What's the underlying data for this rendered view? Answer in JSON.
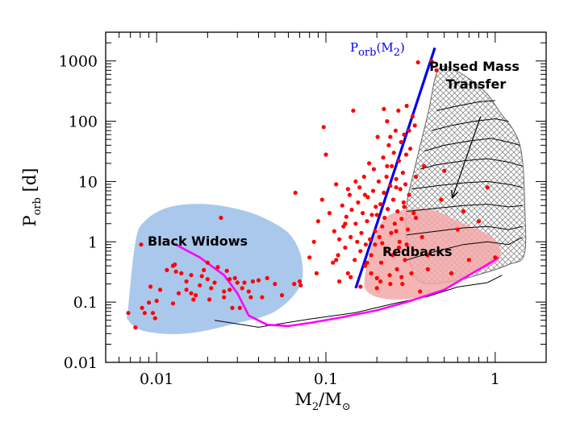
{
  "chart_data": {
    "type": "scatter",
    "x_scale": "log",
    "y_scale": "log",
    "xlim": [
      0.005,
      2.0
    ],
    "ylim": [
      0.01,
      3000
    ],
    "x_ticks": [
      {
        "value": 0.01,
        "label": "0.01"
      },
      {
        "value": 0.1,
        "label": "0.1"
      },
      {
        "value": 1,
        "label": "1"
      }
    ],
    "y_ticks": [
      {
        "value": 0.01,
        "label": "0.01"
      },
      {
        "value": 0.1,
        "label": "0.1"
      },
      {
        "value": 1,
        "label": "1"
      },
      {
        "value": 10,
        "label": "10"
      },
      {
        "value": 100,
        "label": "100"
      },
      {
        "value": 1000,
        "label": "1000"
      }
    ],
    "xlabel": {
      "main": "M",
      "sub": "2",
      "rest": "/M",
      "sub2": "⊙"
    },
    "ylabel": {
      "main": "P",
      "sub": "orb",
      "rest": " [d]"
    },
    "colors": {
      "points": "#ff0000",
      "black_widow_region": "#aac8ec",
      "redback_region": "#f4a8a8",
      "porb_line": "#0000ee",
      "bw_track": "#ff00ff",
      "pmt_region_stroke": "#666666",
      "tracks": "#000000"
    },
    "annotations": {
      "black_widows": "Black Widows",
      "redbacks": "Redbacks",
      "pulsed_mass_transfer_1": "Pulsed Mass",
      "pulsed_mass_transfer_2": "Transfer",
      "porb_line_main": "P",
      "porb_line_sub": "orb",
      "porb_line_rest": "(M",
      "porb_line_sub2": "2",
      "porb_line_close": ")"
    },
    "porb_line": [
      [
        0.15,
        0.17
      ],
      [
        0.44,
        1650
      ]
    ],
    "black_widow_region": [
      [
        0.0068,
        0.08
      ],
      [
        0.0075,
        1.0
      ],
      [
        0.0085,
        2.2
      ],
      [
        0.012,
        3.8
      ],
      [
        0.02,
        4.2
      ],
      [
        0.034,
        3.2
      ],
      [
        0.05,
        2.0
      ],
      [
        0.063,
        1.2
      ],
      [
        0.072,
        0.5
      ],
      [
        0.07,
        0.18
      ],
      [
        0.05,
        0.07
      ],
      [
        0.03,
        0.045
      ],
      [
        0.015,
        0.03
      ],
      [
        0.0085,
        0.033
      ],
      [
        0.0068,
        0.05
      ]
    ],
    "redback_region": [
      [
        0.17,
        0.28
      ],
      [
        0.2,
        1.5
      ],
      [
        0.25,
        3.0
      ],
      [
        0.4,
        3.5
      ],
      [
        0.65,
        2.0
      ],
      [
        1.0,
        1.1
      ],
      [
        1.05,
        0.5
      ],
      [
        0.75,
        0.3
      ],
      [
        0.45,
        0.14
      ],
      [
        0.26,
        0.11
      ],
      [
        0.18,
        0.14
      ]
    ],
    "pmt_region": [
      [
        0.32,
        10
      ],
      [
        0.4,
        130
      ],
      [
        0.46,
        700
      ],
      [
        0.58,
        700
      ],
      [
        0.85,
        330
      ],
      [
        1.05,
        150
      ],
      [
        1.4,
        40
      ],
      [
        1.5,
        3
      ],
      [
        1.48,
        0.6
      ],
      [
        1.2,
        0.42
      ],
      [
        0.85,
        0.3
      ],
      [
        0.55,
        0.22
      ],
      [
        0.35,
        0.23
      ],
      [
        0.3,
        1.0
      ],
      [
        0.3,
        4
      ]
    ],
    "bw_track": [
      [
        0.0125,
        0.95
      ],
      [
        0.018,
        0.55
      ],
      [
        0.025,
        0.28
      ],
      [
        0.03,
        0.14
      ],
      [
        0.035,
        0.06
      ],
      [
        0.045,
        0.042
      ],
      [
        0.06,
        0.04
      ],
      [
        0.08,
        0.045
      ],
      [
        0.12,
        0.055
      ],
      [
        0.2,
        0.073
      ],
      [
        0.3,
        0.1
      ],
      [
        0.5,
        0.16
      ],
      [
        0.7,
        0.28
      ],
      [
        0.9,
        0.42
      ],
      [
        1.05,
        0.55
      ]
    ],
    "evolution_tracks": [
      [
        [
          0.022,
          0.05
        ],
        [
          0.04,
          0.04
        ],
        [
          0.08,
          0.05
        ],
        [
          0.15,
          0.07
        ],
        [
          0.25,
          0.09
        ],
        [
          0.4,
          0.13
        ],
        [
          0.6,
          0.17
        ],
        [
          0.9,
          0.22
        ],
        [
          1.1,
          0.28
        ]
      ],
      [
        [
          0.3,
          0.5
        ],
        [
          0.45,
          0.7
        ],
        [
          0.65,
          0.9
        ],
        [
          0.9,
          1.0
        ],
        [
          1.2,
          0.9
        ],
        [
          1.45,
          1.2
        ]
      ],
      [
        [
          0.3,
          1.3
        ],
        [
          0.45,
          1.5
        ],
        [
          0.65,
          1.7
        ],
        [
          0.9,
          1.8
        ],
        [
          1.2,
          1.6
        ],
        [
          1.45,
          1.8
        ]
      ],
      [
        [
          0.3,
          3.2
        ],
        [
          0.45,
          3.6
        ],
        [
          0.65,
          4.0
        ],
        [
          0.9,
          4.2
        ],
        [
          1.2,
          3.8
        ],
        [
          1.45,
          4.0
        ]
      ],
      [
        [
          0.32,
          7.5
        ],
        [
          0.45,
          8.5
        ],
        [
          0.65,
          9.5
        ],
        [
          0.9,
          10.0
        ],
        [
          1.2,
          9.0
        ],
        [
          1.45,
          8.0
        ]
      ],
      [
        [
          0.36,
          16
        ],
        [
          0.45,
          19
        ],
        [
          0.65,
          22
        ],
        [
          0.9,
          24
        ],
        [
          1.2,
          21
        ],
        [
          1.45,
          18
        ]
      ],
      [
        [
          0.38,
          32
        ],
        [
          0.5,
          40
        ],
        [
          0.7,
          47
        ],
        [
          0.95,
          52
        ],
        [
          1.2,
          45
        ],
        [
          1.4,
          40
        ]
      ],
      [
        [
          0.42,
          70
        ],
        [
          0.55,
          85
        ],
        [
          0.75,
          100
        ],
        [
          1.0,
          110
        ],
        [
          1.2,
          100
        ]
      ],
      [
        [
          0.45,
          150
        ],
        [
          0.6,
          180
        ],
        [
          0.8,
          210
        ],
        [
          1.0,
          220
        ]
      ]
    ],
    "pmt_arrow": {
      "from": [
        0.82,
        120
      ],
      "to": [
        0.56,
        5.5
      ]
    },
    "points": [
      [
        0.0068,
        0.066
      ],
      [
        0.0075,
        0.038
      ],
      [
        0.0081,
        0.9
      ],
      [
        0.0082,
        0.08
      ],
      [
        0.0085,
        0.066
      ],
      [
        0.009,
        0.098
      ],
      [
        0.0092,
        0.18
      ],
      [
        0.0095,
        0.066
      ],
      [
        0.0098,
        0.054
      ],
      [
        0.01,
        0.105
      ],
      [
        0.0105,
        0.16
      ],
      [
        0.0115,
        0.34
      ],
      [
        0.0125,
        0.4
      ],
      [
        0.0128,
        0.42
      ],
      [
        0.013,
        0.32
      ],
      [
        0.014,
        0.3
      ],
      [
        0.015,
        0.16
      ],
      [
        0.016,
        0.14
      ],
      [
        0.0165,
        0.11
      ],
      [
        0.017,
        0.13
      ],
      [
        0.018,
        0.19
      ],
      [
        0.0185,
        0.27
      ],
      [
        0.019,
        0.34
      ],
      [
        0.02,
        0.24
      ],
      [
        0.0205,
        0.11
      ],
      [
        0.021,
        0.17
      ],
      [
        0.022,
        0.21
      ],
      [
        0.023,
        0.38
      ],
      [
        0.024,
        2.5
      ],
      [
        0.025,
        0.15
      ],
      [
        0.026,
        0.33
      ],
      [
        0.027,
        0.16
      ],
      [
        0.028,
        0.08
      ],
      [
        0.029,
        0.25
      ],
      [
        0.03,
        0.21
      ],
      [
        0.032,
        0.17
      ],
      [
        0.033,
        0.21
      ],
      [
        0.035,
        0.15
      ],
      [
        0.036,
        0.12
      ],
      [
        0.037,
        0.22
      ],
      [
        0.04,
        0.23
      ],
      [
        0.042,
        0.12
      ],
      [
        0.045,
        0.25
      ],
      [
        0.05,
        0.2
      ],
      [
        0.055,
        0.13
      ],
      [
        0.065,
        0.2
      ],
      [
        0.071,
        0.19
      ],
      [
        0.015,
        0.22
      ],
      [
        0.0135,
        0.14
      ],
      [
        0.025,
        0.12
      ],
      [
        0.027,
        0.24
      ],
      [
        0.031,
        0.08
      ],
      [
        0.0125,
        0.095
      ],
      [
        0.016,
        0.28
      ],
      [
        0.02,
        0.45
      ],
      [
        0.066,
        6.5
      ],
      [
        0.07,
        0.22
      ],
      [
        0.08,
        0.55
      ],
      [
        0.085,
        1.0
      ],
      [
        0.088,
        0.3
      ],
      [
        0.09,
        2.2
      ],
      [
        0.095,
        5.0
      ],
      [
        0.097,
        80
      ],
      [
        0.1,
        28
      ],
      [
        0.105,
        3.0
      ],
      [
        0.11,
        0.45
      ],
      [
        0.112,
        1.5
      ],
      [
        0.115,
        9.0
      ],
      [
        0.118,
        0.6
      ],
      [
        0.12,
        0.22
      ],
      [
        0.125,
        4.0
      ],
      [
        0.127,
        1.8
      ],
      [
        0.13,
        0.8
      ],
      [
        0.132,
        2.6
      ],
      [
        0.135,
        0.3
      ],
      [
        0.138,
        6.0
      ],
      [
        0.14,
        1.2
      ],
      [
        0.142,
        3.4
      ],
      [
        0.145,
        150
      ],
      [
        0.148,
        0.5
      ],
      [
        0.15,
        2.0
      ],
      [
        0.153,
        1.0
      ],
      [
        0.155,
        4.5
      ],
      [
        0.158,
        8.0
      ],
      [
        0.16,
        0.7
      ],
      [
        0.162,
        1.4
      ],
      [
        0.165,
        3.0
      ],
      [
        0.168,
        12
      ],
      [
        0.17,
        0.4
      ],
      [
        0.172,
        0.9
      ],
      [
        0.175,
        2.2
      ],
      [
        0.177,
        5.5
      ],
      [
        0.18,
        20
      ],
      [
        0.182,
        1.1
      ],
      [
        0.185,
        0.6
      ],
      [
        0.187,
        2.8
      ],
      [
        0.19,
        7.0
      ],
      [
        0.192,
        16
      ],
      [
        0.195,
        1.5
      ],
      [
        0.197,
        3.8
      ],
      [
        0.2,
        0.25
      ],
      [
        0.202,
        55
      ],
      [
        0.205,
        10
      ],
      [
        0.207,
        1.2
      ],
      [
        0.21,
        4.2
      ],
      [
        0.212,
        0.45
      ],
      [
        0.215,
        1.8
      ],
      [
        0.218,
        25
      ],
      [
        0.22,
        6.5
      ],
      [
        0.222,
        2.5
      ],
      [
        0.225,
        0.7
      ],
      [
        0.228,
        12
      ],
      [
        0.23,
        100
      ],
      [
        0.232,
        3.5
      ],
      [
        0.235,
        40
      ],
      [
        0.238,
        0.28
      ],
      [
        0.24,
        8.5
      ],
      [
        0.243,
        1.4
      ],
      [
        0.245,
        18
      ],
      [
        0.248,
        0.6
      ],
      [
        0.25,
        5.0
      ],
      [
        0.252,
        30
      ],
      [
        0.255,
        2.0
      ],
      [
        0.258,
        70
      ],
      [
        0.26,
        11
      ],
      [
        0.263,
        0.35
      ],
      [
        0.265,
        3.2
      ],
      [
        0.268,
        150
      ],
      [
        0.27,
        22
      ],
      [
        0.272,
        1.0
      ],
      [
        0.275,
        7.5
      ],
      [
        0.278,
        45
      ],
      [
        0.28,
        2.4
      ],
      [
        0.283,
        0.2
      ],
      [
        0.285,
        14
      ],
      [
        0.288,
        4.5
      ],
      [
        0.29,
        60
      ],
      [
        0.293,
        0.5
      ],
      [
        0.295,
        9.0
      ],
      [
        0.298,
        28
      ],
      [
        0.3,
        180
      ],
      [
        0.305,
        1.6
      ],
      [
        0.31,
        6.0
      ],
      [
        0.315,
        35
      ],
      [
        0.32,
        0.3
      ],
      [
        0.325,
        120
      ],
      [
        0.33,
        3.0
      ],
      [
        0.335,
        85
      ],
      [
        0.34,
        12
      ],
      [
        0.35,
        950
      ],
      [
        0.36,
        0.15
      ],
      [
        0.37,
        1.2
      ],
      [
        0.38,
        18
      ],
      [
        0.4,
        0.6
      ],
      [
        0.42,
        1000
      ],
      [
        0.45,
        700
      ],
      [
        0.48,
        5.0
      ],
      [
        0.5,
        15
      ],
      [
        0.55,
        0.3
      ],
      [
        0.6,
        1.6
      ],
      [
        0.65,
        3.2
      ],
      [
        0.7,
        0.5
      ],
      [
        0.8,
        2.2
      ],
      [
        0.9,
        8.0
      ],
      [
        1.0,
        0.55
      ],
      [
        0.22,
        160
      ],
      [
        0.175,
        0.45
      ],
      [
        0.195,
        0.9
      ],
      [
        0.26,
        1.5
      ],
      [
        0.3,
        0.9
      ],
      [
        0.4,
        0.35
      ],
      [
        0.34,
        2.5
      ],
      [
        0.12,
        1.1
      ],
      [
        0.14,
        0.26
      ],
      [
        0.16,
        0.18
      ],
      [
        0.2,
        0.17
      ],
      [
        0.185,
        0.3
      ],
      [
        0.24,
        0.2
      ],
      [
        0.21,
        0.22
      ],
      [
        0.28,
        0.26
      ],
      [
        0.115,
        0.5
      ],
      [
        0.13,
        2.0
      ],
      [
        0.24,
        55
      ],
      [
        0.27,
        0.8
      ],
      [
        0.29,
        3.8
      ],
      [
        0.31,
        70
      ],
      [
        0.23,
        18
      ],
      [
        0.17,
        6.0
      ],
      [
        0.15,
        10
      ],
      [
        0.135,
        7.5
      ],
      [
        0.215,
        0.95
      ],
      [
        0.255,
        0.65
      ],
      [
        0.26,
        8.0
      ],
      [
        0.2,
        2.8
      ]
    ]
  }
}
